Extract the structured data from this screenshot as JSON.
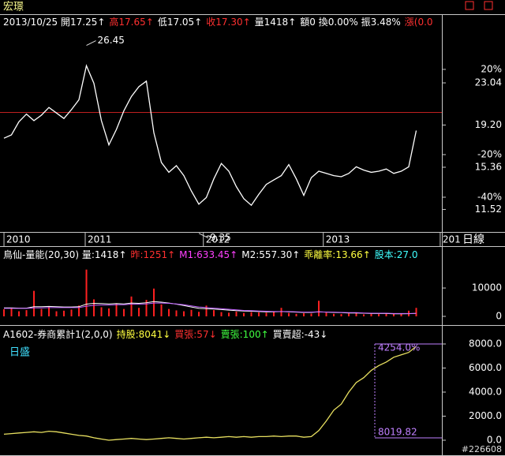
{
  "title": "宏璟",
  "period": "日線",
  "watermark": "#226608",
  "chart_data": [
    {
      "type": "line",
      "color": "#ffffff",
      "header": [
        {
          "text": "2013/10/25 開17.25↑",
          "color": "#ffffff"
        },
        {
          "text": "高17.65↑",
          "color": "#ff3030"
        },
        {
          "text": "低17.05↑",
          "color": "#ffffff"
        },
        {
          "text": "收17.30↑",
          "color": "#ff3030"
        },
        {
          "text": "量1418↑",
          "color": "#ffffff"
        },
        {
          "text": "額0 換0.00% 振3.48%",
          "color": "#ffffff"
        },
        {
          "text": "漲(0.0",
          "color": "#ff3030"
        }
      ],
      "values": [
        18.0,
        18.3,
        19.5,
        20.2,
        19.6,
        20.1,
        20.8,
        20.3,
        19.8,
        20.6,
        21.5,
        24.6,
        23.0,
        19.6,
        17.4,
        18.8,
        20.5,
        21.8,
        22.7,
        23.2,
        18.5,
        15.8,
        14.9,
        15.5,
        14.6,
        13.2,
        12.0,
        12.6,
        14.3,
        15.7,
        15.0,
        13.6,
        12.5,
        11.9,
        12.9,
        13.8,
        14.2,
        14.6,
        15.6,
        14.3,
        12.8,
        14.4,
        15.0,
        14.8,
        14.6,
        14.5,
        14.8,
        15.4,
        15.1,
        14.9,
        15.0,
        15.2,
        14.8,
        15.0,
        15.4,
        18.7
      ],
      "annotations": [
        {
          "value": 26.45,
          "index": 11
        },
        {
          "value": 9.35,
          "index": 26
        }
      ],
      "xlim": [
        -0.53,
        58.42
      ],
      "xticks": [
        {
          "value": 0,
          "label": "2010"
        },
        {
          "value": 10.84,
          "label": "2011"
        },
        {
          "value": 26.6,
          "label": "2012"
        },
        {
          "value": 42.6,
          "label": "2013"
        },
        {
          "value": 58.2,
          "label": "201"
        }
      ],
      "ylim": [
        9.47,
        29.29
      ],
      "yticks": [
        23.04,
        {
          "value": 19.2,
          "label": "19.20"
        },
        15.36,
        11.52
      ],
      "y2lim": [
        -56.3,
        45.9
      ],
      "y2ticks": [
        {
          "value": 20,
          "label": "20%"
        },
        {
          "value": -20,
          "label": "-20%"
        },
        {
          "value": -40,
          "label": "-40%"
        }
      ]
    },
    {
      "type": "bar",
      "color": "#ff2020",
      "header": [
        {
          "text": "鳥仙-量能(20,30) 量:1418↑",
          "color": "#ffffff"
        },
        {
          "text": "昨:1251↑",
          "color": "#ff3030"
        },
        {
          "text": "M1:633.45↑",
          "color": "#ff40ff"
        },
        {
          "text": "M2:557.30↑",
          "color": "#ffffff"
        },
        {
          "text": "乖離率:13.66↑",
          "color": "#ffff40"
        },
        {
          "text": "股本:27.0",
          "color": "#40ffff"
        }
      ],
      "values": [
        2500,
        3000,
        1800,
        2200,
        9000,
        2600,
        3500,
        1800,
        2000,
        2400,
        3800,
        16500,
        6000,
        3200,
        2800,
        4500,
        2600,
        7000,
        3000,
        5800,
        9800,
        4200,
        2600,
        2100,
        1800,
        2300,
        1600,
        3800,
        2200,
        1500,
        1300,
        1700,
        1200,
        1500,
        1400,
        1300,
        1600,
        3000,
        1200,
        900,
        1100,
        1000,
        5500,
        1300,
        900,
        800,
        1000,
        1200,
        700,
        900,
        800,
        1000,
        800,
        900,
        2000,
        3000
      ],
      "series": [
        {
          "color": "#ffffff",
          "values": [
            3000,
            3000,
            2900,
            2900,
            3400,
            3400,
            3500,
            3400,
            3300,
            3300,
            3400,
            4300,
            4600,
            4500,
            4400,
            4500,
            4400,
            4700,
            4600,
            4800,
            5200,
            5000,
            4700,
            4300,
            3800,
            3300,
            2800,
            2700,
            2600,
            2400,
            2200,
            2000,
            1900,
            1800,
            1700,
            1600,
            1600,
            1700,
            1600,
            1500,
            1400,
            1400,
            1600,
            1500,
            1400,
            1300,
            1200,
            1200,
            1100,
            1000,
            1000,
            1000,
            900,
            900,
            950,
            1050
          ]
        },
        {
          "color": "#c060ff",
          "values": [
            2800,
            2800,
            2800,
            2800,
            3000,
            3000,
            3100,
            3100,
            3100,
            3100,
            3100,
            3600,
            3900,
            4000,
            4000,
            4100,
            4100,
            4300,
            4300,
            4400,
            4700,
            4700,
            4600,
            4400,
            4100,
            3700,
            3300,
            3100,
            2900,
            2700,
            2500,
            2300,
            2100,
            2000,
            1900,
            1800,
            1700,
            1700,
            1700,
            1600,
            1500,
            1500,
            1600,
            1500,
            1500,
            1400,
            1300,
            1300,
            1200,
            1100,
            1100,
            1100,
            1000,
            1000,
            1000,
            1050
          ]
        }
      ],
      "ylim": [
        0,
        19200
      ],
      "yticks": [
        10000,
        0
      ]
    },
    {
      "type": "line",
      "color": "#e8e060",
      "header": [
        {
          "text": "A1602-券商累計1(2,0,0)",
          "color": "#ffffff"
        },
        {
          "text": "持股:8041↓",
          "color": "#ffff40"
        },
        {
          "text": "買張:57↓",
          "color": "#ff3030"
        },
        {
          "text": "賣張:100↑",
          "color": "#40ff40"
        },
        {
          "text": "買賣超:-43↓",
          "color": "#ffffff"
        }
      ],
      "label": "日盛",
      "values": [
        500,
        550,
        600,
        650,
        700,
        650,
        750,
        700,
        600,
        500,
        400,
        350,
        200,
        100,
        0,
        50,
        100,
        150,
        100,
        50,
        100,
        150,
        200,
        150,
        100,
        150,
        200,
        250,
        200,
        250,
        300,
        250,
        300,
        250,
        300,
        300,
        350,
        300,
        350,
        350,
        250,
        300,
        800,
        1600,
        2500,
        3000,
        4000,
        4800,
        5200,
        5800,
        6200,
        6500,
        6900,
        7100,
        7300,
        7800
      ],
      "annotations": [
        "4254.0%",
        "8019.82"
      ],
      "ylim": [
        -787,
        8262
      ],
      "yticks": [
        {
          "value": 8000,
          "label": "8000.0"
        },
        {
          "value": 6000,
          "label": "6000.0"
        },
        {
          "value": 4000,
          "label": "4000.0"
        },
        {
          "value": 2000,
          "label": "2000.0"
        },
        {
          "value": 0,
          "label": "0.0"
        }
      ]
    }
  ]
}
